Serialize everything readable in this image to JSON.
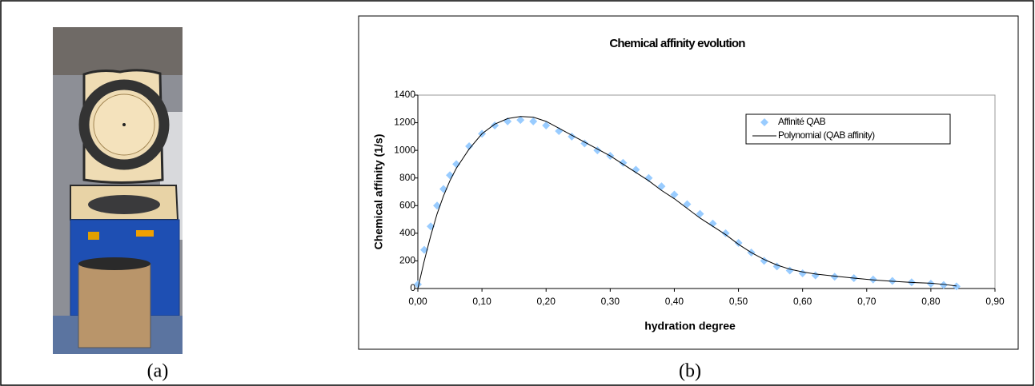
{
  "captions": [
    "(a)",
    "(b)"
  ],
  "chart_data": {
    "type": "scatter",
    "title": "Chemical affinity evolution",
    "x_label": "hydration degree",
    "y_label": "Chemical affinity (1/s)",
    "x": [
      0,
      0.01,
      0.02,
      0.03,
      0.04,
      0.05,
      0.06,
      0.08,
      0.1,
      0.12,
      0.14,
      0.16,
      0.18,
      0.2,
      0.22,
      0.24,
      0.26,
      0.28,
      0.3,
      0.32,
      0.34,
      0.36,
      0.38,
      0.4,
      0.42,
      0.44,
      0.46,
      0.48,
      0.5,
      0.52,
      0.54,
      0.56,
      0.58,
      0.6,
      0.62,
      0.65,
      0.68,
      0.71,
      0.74,
      0.77,
      0.8,
      0.82,
      0.84
    ],
    "series": [
      {
        "name": "Affinité QAB",
        "color": "#99ccff",
        "values": [
          30,
          280,
          450,
          600,
          720,
          820,
          900,
          1030,
          1120,
          1180,
          1210,
          1220,
          1210,
          1180,
          1140,
          1100,
          1050,
          1000,
          960,
          910,
          860,
          800,
          740,
          680,
          610,
          540,
          470,
          400,
          330,
          260,
          200,
          160,
          130,
          110,
          95,
          85,
          75,
          65,
          55,
          45,
          35,
          25,
          15
        ]
      },
      {
        "name": "Polynomial (QAB affinity)",
        "color": "#000000",
        "type": "line",
        "values": [
          0,
          200,
          380,
          540,
          670,
          780,
          870,
          1010,
          1120,
          1190,
          1230,
          1245,
          1240,
          1210,
          1160,
          1110,
          1060,
          1010,
          960,
          900,
          840,
          780,
          710,
          650,
          580,
          510,
          450,
          390,
          320,
          260,
          210,
          170,
          140,
          120,
          105,
          90,
          75,
          62,
          52,
          44,
          38,
          30,
          18
        ]
      }
    ],
    "xlim": [
      0,
      0.9
    ],
    "ylim": [
      0,
      1400
    ],
    "xticks": [
      {
        "value": 0,
        "label": "0,00"
      },
      {
        "value": 0.1,
        "label": "0,10"
      },
      {
        "value": 0.2,
        "label": "0,20"
      },
      {
        "value": 0.3,
        "label": "0,30"
      },
      {
        "value": 0.4,
        "label": "0,40"
      },
      {
        "value": 0.5,
        "label": "0,50"
      },
      {
        "value": 0.6,
        "label": "0,60"
      },
      {
        "value": 0.7,
        "label": "0,70"
      },
      {
        "value": 0.8,
        "label": "0,80"
      },
      {
        "value": 0.9,
        "label": "0,90"
      }
    ],
    "yticks": [
      0,
      200,
      400,
      600,
      800,
      1000,
      1200,
      1400
    ],
    "legend": "top-right"
  }
}
